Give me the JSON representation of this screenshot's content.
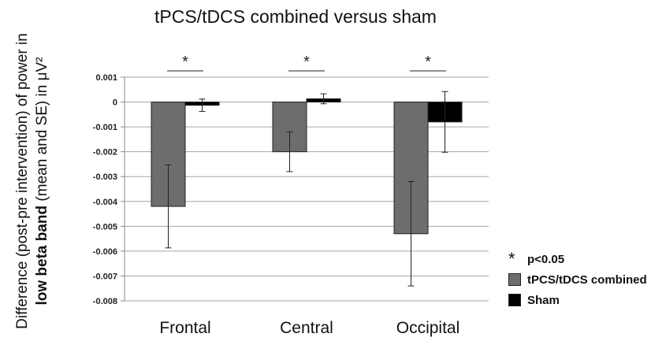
{
  "chart_data": {
    "type": "bar",
    "title": "tPCS/tDCS combined versus sham",
    "ylabel_parts": [
      "Difference (post-pre intervention) of power in ",
      "low beta band",
      " (mean and SE) in μV²"
    ],
    "categories": [
      "Frontal",
      "Central",
      "Occipital"
    ],
    "series": [
      {
        "name": "tPCS/tDCS combined",
        "color": "#6d6d6d",
        "values": [
          -0.0042,
          -0.002,
          -0.0053
        ],
        "errors": [
          0.00167,
          0.0008,
          0.0021
        ]
      },
      {
        "name": "Sham",
        "color": "#000000",
        "values": [
          -0.00013,
          0.00013,
          -0.0008
        ],
        "errors": [
          0.00025,
          0.0002,
          0.00122
        ]
      }
    ],
    "ylim": [
      -0.008,
      0.001
    ],
    "yticks": [
      "0.001",
      "0",
      "-0.001",
      "-0.002",
      "-0.003",
      "-0.004",
      "-0.005",
      "-0.006",
      "-0.007",
      "-0.008"
    ],
    "grid": true,
    "significance_marks": [
      "*",
      "*",
      "*"
    ],
    "legend": {
      "position": "bottom-right",
      "significance_label": "p<0.05"
    }
  }
}
